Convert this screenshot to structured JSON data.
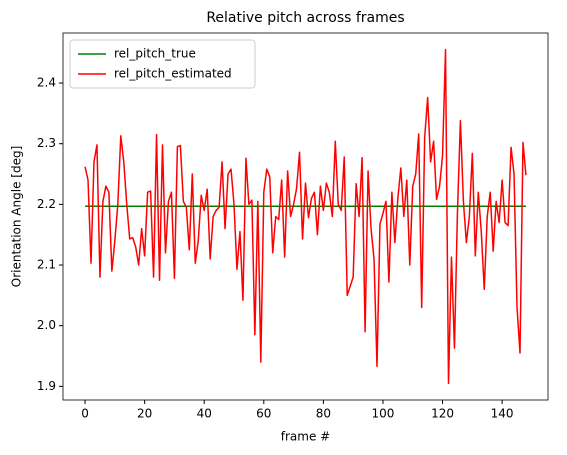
{
  "chart_data": {
    "type": "line",
    "title": "Relative pitch across frames",
    "x_label": "frame #",
    "y_label": "Orientation Angle [deg]",
    "xlim": [
      -7.4,
      155.4
    ],
    "ylim": [
      1.8775,
      2.4825
    ],
    "xticks": [
      0,
      20,
      40,
      60,
      80,
      100,
      120,
      140
    ],
    "yticks": [
      1.9,
      {
        "value": 2,
        "label": "2.0"
      },
      2.1,
      2.2,
      2.3,
      2.4
    ],
    "grid": false,
    "legend": "upper left",
    "series": [
      {
        "name": "rel_pitch_true",
        "color": "#008000",
        "x": [
          0,
          148
        ],
        "values": [
          2.197,
          2.197
        ]
      },
      {
        "name": "rel_pitch_estimated",
        "color": "#ff0000",
        "x": [
          0,
          1,
          2,
          3,
          4,
          5,
          6,
          7,
          8,
          9,
          10,
          11,
          12,
          13,
          14,
          15,
          16,
          17,
          18,
          19,
          20,
          21,
          22,
          23,
          24,
          25,
          26,
          27,
          28,
          29,
          30,
          31,
          32,
          33,
          34,
          35,
          36,
          37,
          38,
          39,
          40,
          41,
          42,
          43,
          44,
          45,
          46,
          47,
          48,
          49,
          50,
          51,
          52,
          53,
          54,
          55,
          56,
          57,
          58,
          59,
          60,
          61,
          62,
          63,
          64,
          65,
          66,
          67,
          68,
          69,
          70,
          71,
          72,
          73,
          74,
          75,
          76,
          77,
          78,
          79,
          80,
          81,
          82,
          83,
          84,
          85,
          86,
          87,
          88,
          89,
          90,
          91,
          92,
          93,
          94,
          95,
          96,
          97,
          98,
          99,
          100,
          101,
          102,
          103,
          104,
          105,
          106,
          107,
          108,
          109,
          110,
          111,
          112,
          113,
          114,
          115,
          116,
          117,
          118,
          119,
          120,
          121,
          122,
          123,
          124,
          125,
          126,
          127,
          128,
          129,
          130,
          131,
          132,
          133,
          134,
          135,
          136,
          137,
          138,
          139,
          140,
          141,
          142,
          143,
          144,
          145,
          146,
          147,
          148
        ],
        "values": [
          2.262,
          2.24,
          2.103,
          2.27,
          2.298,
          2.08,
          2.205,
          2.23,
          2.22,
          2.09,
          2.14,
          2.2,
          2.313,
          2.27,
          2.2,
          2.143,
          2.145,
          2.13,
          2.1,
          2.16,
          2.115,
          2.22,
          2.222,
          2.08,
          2.315,
          2.075,
          2.298,
          2.12,
          2.205,
          2.22,
          2.078,
          2.295,
          2.297,
          2.205,
          2.195,
          2.125,
          2.25,
          2.103,
          2.14,
          2.215,
          2.19,
          2.225,
          2.11,
          2.18,
          2.19,
          2.195,
          2.27,
          2.16,
          2.25,
          2.258,
          2.2,
          2.093,
          2.155,
          2.042,
          2.276,
          2.2,
          2.207,
          1.985,
          2.205,
          1.94,
          2.22,
          2.258,
          2.245,
          2.12,
          2.18,
          2.175,
          2.24,
          2.113,
          2.255,
          2.18,
          2.2,
          2.226,
          2.286,
          2.143,
          2.235,
          2.178,
          2.21,
          2.22,
          2.15,
          2.23,
          2.19,
          2.235,
          2.22,
          2.18,
          2.304,
          2.2,
          2.19,
          2.278,
          2.05,
          2.065,
          2.08,
          2.234,
          2.18,
          2.277,
          1.99,
          2.255,
          2.16,
          2.11,
          1.933,
          2.168,
          2.185,
          2.205,
          2.072,
          2.22,
          2.137,
          2.21,
          2.26,
          2.18,
          2.24,
          2.1,
          2.23,
          2.25,
          2.316,
          2.03,
          2.31,
          2.376,
          2.27,
          2.304,
          2.208,
          2.23,
          2.28,
          2.455,
          1.905,
          2.113,
          1.963,
          2.186,
          2.338,
          2.205,
          2.137,
          2.18,
          2.284,
          2.115,
          2.22,
          2.155,
          2.06,
          2.18,
          2.22,
          2.123,
          2.205,
          2.17,
          2.24,
          2.17,
          2.165,
          2.294,
          2.25,
          2.03,
          1.955,
          2.302,
          2.248
        ]
      }
    ]
  }
}
